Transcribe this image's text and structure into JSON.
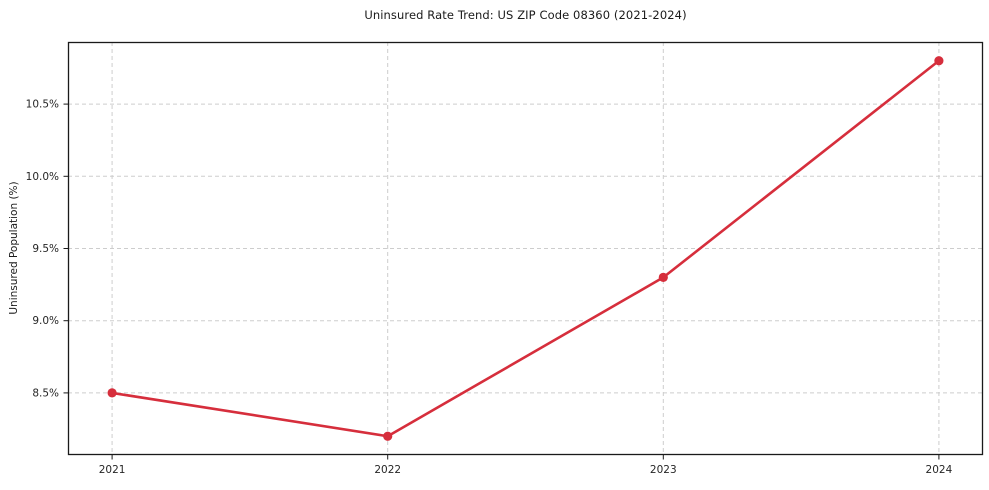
{
  "chart_data": {
    "type": "line",
    "title": "Uninsured Rate Trend: US ZIP Code 08360 (2021-2024)",
    "xlabel": "",
    "ylabel": "Uninsured Population (%)",
    "x": [
      2021,
      2022,
      2023,
      2024
    ],
    "values": [
      8.5,
      8.2,
      9.3,
      10.8
    ],
    "xtick_labels": [
      "2021",
      "2022",
      "2023",
      "2024"
    ],
    "ytick_values": [
      8.5,
      9.0,
      9.5,
      10.0,
      10.5
    ],
    "ytick_labels": [
      "8.5%",
      "9.0%",
      "9.5%",
      "10.0%",
      "10.5%"
    ],
    "xlim": [
      2020.84,
      2024.16
    ],
    "ylim": [
      8.07,
      10.93
    ],
    "grid": true,
    "grid_style": "dashed",
    "legend": false,
    "colors": {
      "line": "#d62e3c",
      "marker": "#d62e3c",
      "grid": "#cdcdcd",
      "axis": "#1a1a1a",
      "tick_text": "#262626",
      "background": "#ffffff"
    }
  }
}
